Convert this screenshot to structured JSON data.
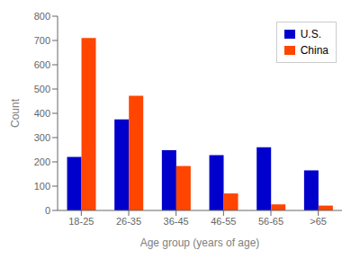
{
  "chart_data": {
    "type": "bar",
    "categories": [
      "18-25",
      "26-35",
      "36-45",
      "46-55",
      "56-65",
      ">65"
    ],
    "series": [
      {
        "name": "U.S.",
        "color": "#0000cc",
        "values": [
          220,
          375,
          248,
          228,
          260,
          165
        ]
      },
      {
        "name": "China",
        "color": "#ff4500",
        "values": [
          710,
          472,
          183,
          70,
          25,
          20
        ]
      }
    ],
    "xlabel": "Age group (years of age)",
    "ylabel": "Count",
    "ylim": [
      0,
      800
    ],
    "yticks": [
      0,
      100,
      200,
      300,
      400,
      500,
      600,
      700,
      800
    ],
    "legend": "upper right",
    "grid": false
  }
}
